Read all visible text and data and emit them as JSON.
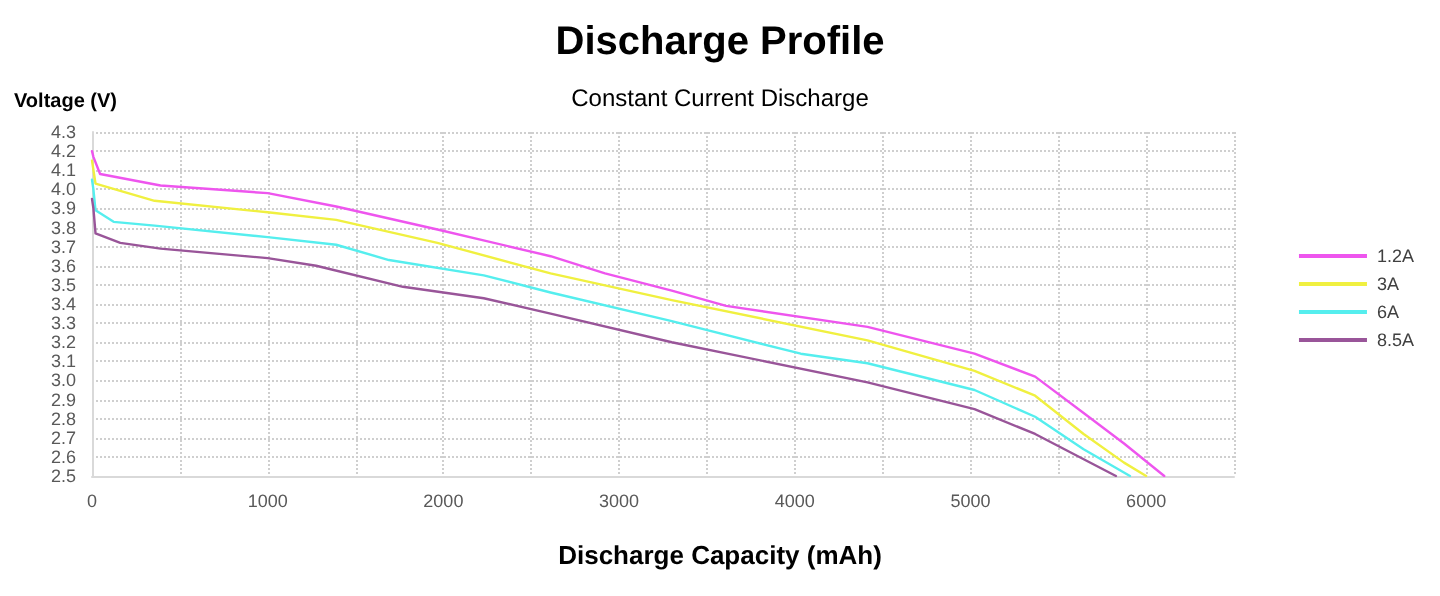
{
  "chart_data": {
    "type": "line",
    "title": "Discharge Profile",
    "subtitle": "Constant Current Discharge",
    "xlabel": "Discharge Capacity (mAh)",
    "ylabel": "Voltage (V)",
    "xlim": [
      0,
      6500
    ],
    "xticks": [
      0,
      {
        "value": 500,
        "label": null
      },
      1000,
      {
        "value": 1500,
        "label": null
      },
      2000,
      {
        "value": 2500,
        "label": null
      },
      3000,
      {
        "value": 3500,
        "label": null
      },
      4000,
      {
        "value": 4500,
        "label": null
      },
      5000,
      {
        "value": 5500,
        "label": null
      },
      6000,
      {
        "value": 6500,
        "label": null
      }
    ],
    "ylim": [
      2.5,
      4.3
    ],
    "yticks": [
      2.5,
      2.6,
      2.7,
      2.8,
      2.9,
      {
        "value": 3.0,
        "label": "3.0"
      },
      3.1,
      3.2,
      3.3,
      3.4,
      3.5,
      3.6,
      3.7,
      3.8,
      3.9,
      {
        "value": 4.0,
        "label": "4.0"
      },
      4.1,
      4.2,
      4.3
    ],
    "grid": true,
    "legend": "right",
    "marker": "none",
    "line_style": "solid",
    "series": [
      {
        "name": "1.2A",
        "color": "#ee55ee",
        "x": [
          0,
          8,
          46,
          390,
          1000,
          1390,
          1966,
          2610,
          2920,
          3300,
          3609,
          4414,
          5023,
          5368,
          5644,
          5874,
          6103
        ],
        "values": [
          4.2,
          4.17,
          4.08,
          4.02,
          3.98,
          3.91,
          3.79,
          3.65,
          3.56,
          3.47,
          3.39,
          3.28,
          3.14,
          3.02,
          2.83,
          2.67,
          2.5
        ]
      },
      {
        "name": "3A",
        "color": "#f0f040",
        "x": [
          0,
          20,
          356,
          1000,
          1390,
          1966,
          2610,
          3300,
          4414,
          5023,
          5368,
          5644,
          5874,
          6000
        ],
        "values": [
          4.15,
          4.03,
          3.94,
          3.88,
          3.84,
          3.72,
          3.56,
          3.42,
          3.21,
          3.05,
          2.92,
          2.72,
          2.57,
          2.5
        ]
      },
      {
        "name": "6A",
        "color": "#55eeee",
        "x": [
          0,
          8,
          20,
          123,
          356,
          1000,
          1390,
          1690,
          2230,
          2610,
          3300,
          4034,
          4414,
          5023,
          5368,
          5644,
          5908
        ],
        "values": [
          4.05,
          4.0,
          3.89,
          3.83,
          3.81,
          3.75,
          3.71,
          3.63,
          3.55,
          3.46,
          3.31,
          3.14,
          3.09,
          2.95,
          2.81,
          2.64,
          2.5
        ]
      },
      {
        "name": "8.5A",
        "color": "#995599",
        "x": [
          0,
          8,
          20,
          161,
          390,
          1000,
          1276,
          1770,
          2230,
          2610,
          3300,
          4414,
          5023,
          5368,
          5828
        ],
        "values": [
          3.95,
          3.9,
          3.77,
          3.72,
          3.69,
          3.64,
          3.6,
          3.49,
          3.43,
          3.35,
          3.2,
          2.99,
          2.85,
          2.72,
          2.5
        ]
      }
    ]
  }
}
